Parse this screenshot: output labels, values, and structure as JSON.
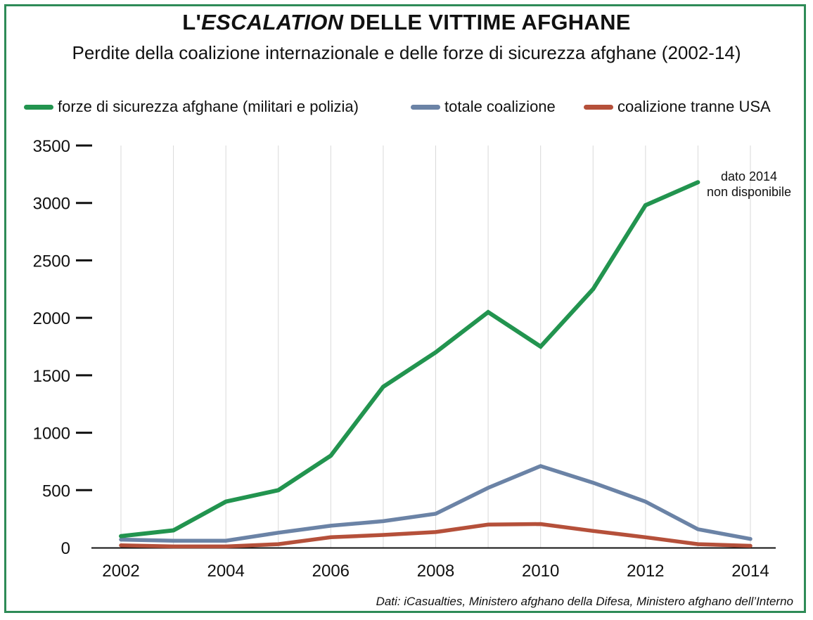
{
  "header": {
    "title_prefix": "L'",
    "title_italic": "ESCALATION",
    "title_suffix": " DELLE VITTIME AFGHANE",
    "subtitle": "Perdite della coalizione internazionale e delle forze di sicurezza afghane (2002-14)"
  },
  "legend": [
    {
      "label": "forze di sicurezza afghane (militari e polizia)",
      "color": "#22944f"
    },
    {
      "label": "totale coalizione",
      "color": "#6b83a6"
    },
    {
      "label": "coalizione tranne USA",
      "color": "#b5503a"
    }
  ],
  "annotation": "dato 2014\nnon disponibile",
  "source": "Dati: iCasualties, Ministero afghano della Difesa, Ministero afghano dell’Interno",
  "chart_data": {
    "type": "line",
    "title": "L'ESCALATION DELLE VITTIME AFGHANE",
    "subtitle": "Perdite della coalizione internazionale e delle forze di sicurezza afghane (2002-14)",
    "xlabel": "",
    "ylabel": "",
    "x": [
      2002,
      2003,
      2004,
      2005,
      2006,
      2007,
      2008,
      2009,
      2010,
      2011,
      2012,
      2013,
      2014
    ],
    "x_ticks": [
      2002,
      2004,
      2006,
      2008,
      2010,
      2012,
      2014
    ],
    "y_ticks": [
      0,
      500,
      1000,
      1500,
      2000,
      2500,
      3000,
      3500
    ],
    "xlim": [
      2002,
      2014
    ],
    "ylim": [
      0,
      3500
    ],
    "grid": "vertical",
    "legend_position": "top",
    "series": [
      {
        "name": "forze di sicurezza afghane (militari e polizia)",
        "color": "#22944f",
        "values": [
          100,
          150,
          400,
          500,
          800,
          1400,
          1700,
          2050,
          1750,
          2250,
          2980,
          3180,
          null
        ]
      },
      {
        "name": "totale coalizione",
        "color": "#6b83a6",
        "values": [
          70,
          60,
          60,
          130,
          190,
          230,
          295,
          520,
          710,
          565,
          400,
          160,
          75
        ]
      },
      {
        "name": "coalizione tranne USA",
        "color": "#b5503a",
        "values": [
          20,
          10,
          10,
          30,
          90,
          110,
          135,
          200,
          205,
          145,
          90,
          30,
          15
        ]
      }
    ]
  }
}
